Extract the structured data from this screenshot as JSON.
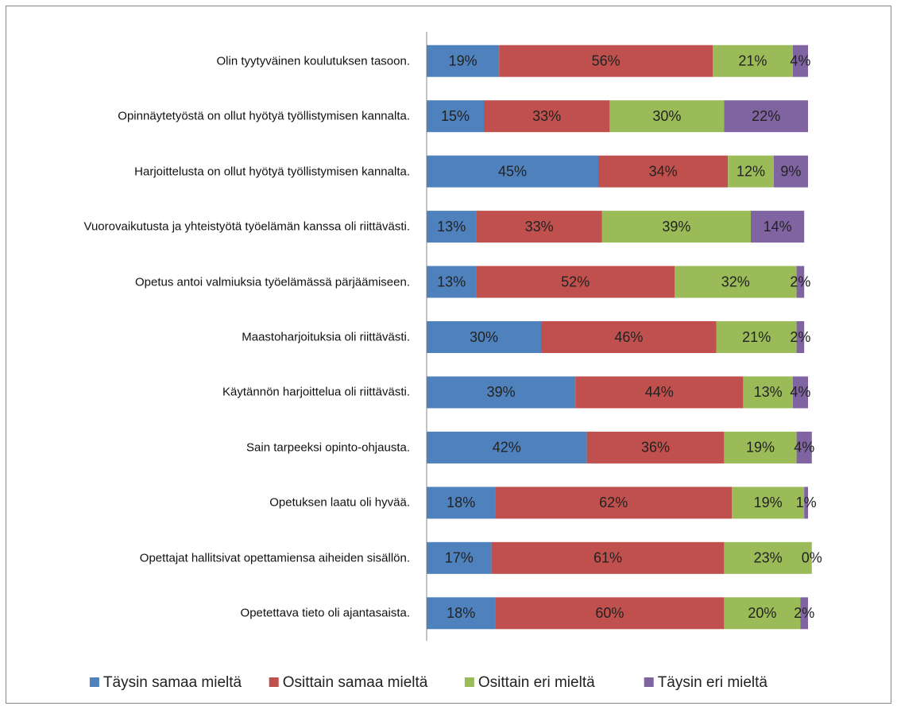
{
  "chart_data": {
    "type": "stacked-bar-horizontal",
    "categories": [
      "Olin tyytyväinen koulutuksen tasoon.",
      "Opinnäytetyöstä on ollut hyötyä työllistymisen kannalta.",
      "Harjoittelusta on ollut hyötyä työllistymisen kannalta.",
      "Vuorovaikutusta ja yhteistyötä työelämän kanssa oli riittävästi.",
      "Opetus antoi valmiuksia työelämässä pärjäämiseen.",
      "Maastoharjoituksia oli riittävästi.",
      "Käytännön harjoittelua oli riittävästi.",
      "Sain tarpeeksi opinto-ohjausta.",
      "Opetuksen laatu oli hyvää.",
      "Opettajat hallitsivat opettamiensa aiheiden sisällön.",
      "Opetettava tieto oli ajantasaista."
    ],
    "series": [
      {
        "name": "Täysin samaa mieltä",
        "color": "#4f81bd",
        "values": [
          19,
          15,
          45,
          13,
          13,
          30,
          39,
          42,
          18,
          17,
          18
        ],
        "value_labels": [
          "19%",
          "15%",
          "45%",
          "13%",
          "13%",
          "30%",
          "39%",
          "42%",
          "18%",
          "17%",
          "18%"
        ]
      },
      {
        "name": "Osittain samaa mieltä",
        "color": "#c0504d",
        "values": [
          56,
          33,
          34,
          33,
          52,
          46,
          44,
          36,
          62,
          61,
          60
        ],
        "value_labels": [
          "56%",
          "33%",
          "34%",
          "33%",
          "52%",
          "46%",
          "44%",
          "36%",
          "62%",
          "61%",
          "60%"
        ]
      },
      {
        "name": "Osittain eri mieltä",
        "color": "#9bbb59",
        "values": [
          21,
          30,
          12,
          39,
          32,
          21,
          13,
          19,
          19,
          23,
          20
        ],
        "value_labels": [
          "21%",
          "30%",
          "12%",
          "39%",
          "32%",
          "21%",
          "13%",
          "19%",
          "19%",
          "23%",
          "20%"
        ]
      },
      {
        "name": "Täysin eri mieltä",
        "color": "#8064a2",
        "values": [
          4,
          22,
          9,
          14,
          2,
          2,
          4,
          4,
          1,
          0,
          2
        ],
        "value_labels": [
          "4%",
          "22%",
          "9%",
          "14%",
          "2%",
          "2%",
          "4%",
          "4%",
          "1%",
          "0%",
          "2%"
        ]
      }
    ],
    "xlim": [
      0,
      100
    ]
  }
}
